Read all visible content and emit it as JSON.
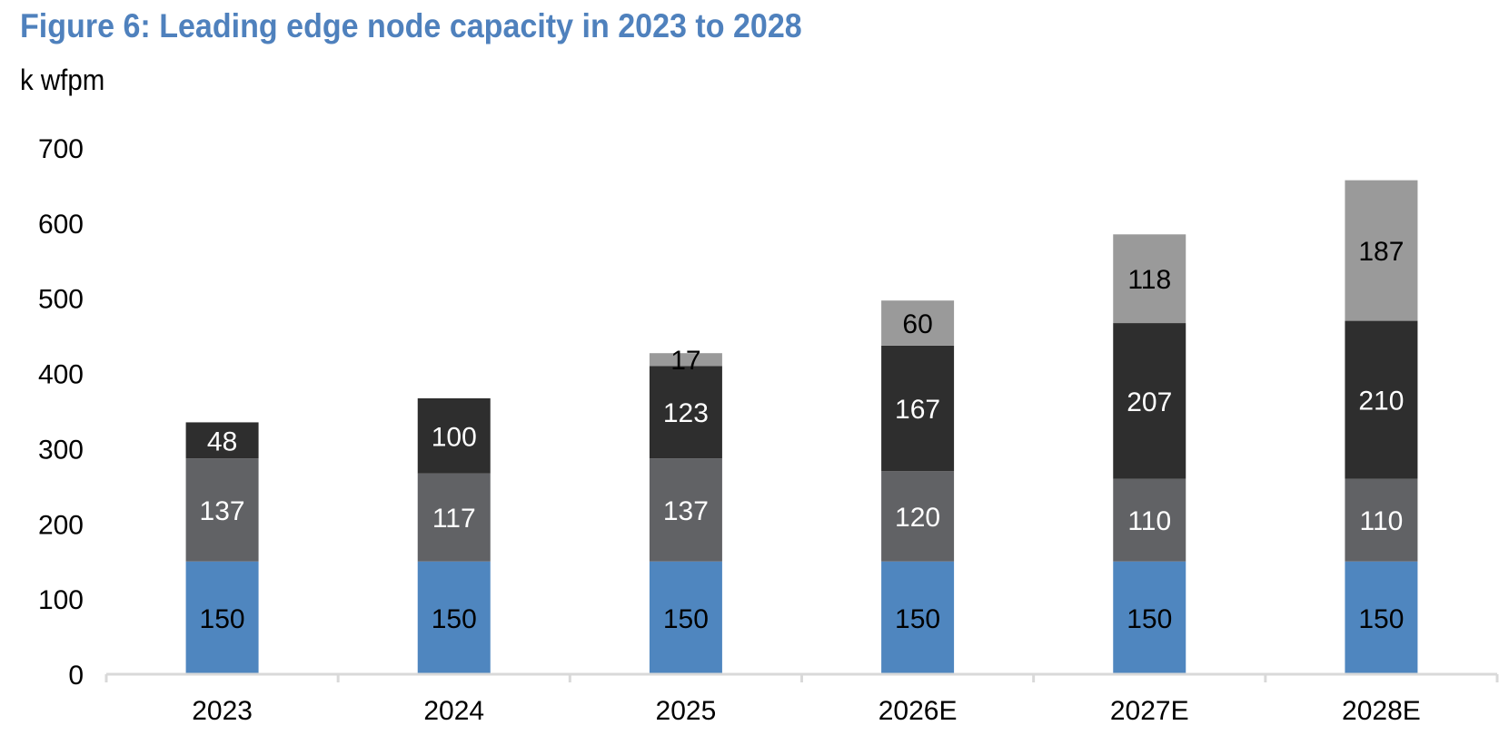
{
  "title": "Figure 6: Leading edge node capacity in 2023 to 2028",
  "unit_label": "k wfpm",
  "chart_data": {
    "type": "bar",
    "stacked": true,
    "title": "Figure 6: Leading edge node capacity in 2023 to 2028",
    "xlabel": "",
    "ylabel": "k wfpm",
    "ylim": [
      0,
      700
    ],
    "yticks": [
      0,
      100,
      200,
      300,
      400,
      500,
      600,
      700
    ],
    "grid": false,
    "legend": "none",
    "categories": [
      "2023",
      "2024",
      "2025",
      "2026E",
      "2027E",
      "2028E"
    ],
    "series": [
      {
        "color": "#4f86bf",
        "label_color": "#000000",
        "values": [
          150,
          150,
          150,
          150,
          150,
          150
        ]
      },
      {
        "color": "#616265",
        "label_color": "#ffffff",
        "values": [
          137,
          117,
          137,
          120,
          110,
          110
        ]
      },
      {
        "color": "#2e2e2e",
        "label_color": "#ffffff",
        "values": [
          48,
          100,
          123,
          167,
          207,
          210
        ]
      },
      {
        "color": "#9a9a9a",
        "label_color": "#000000",
        "values": [
          null,
          null,
          17,
          60,
          118,
          187
        ]
      }
    ]
  }
}
